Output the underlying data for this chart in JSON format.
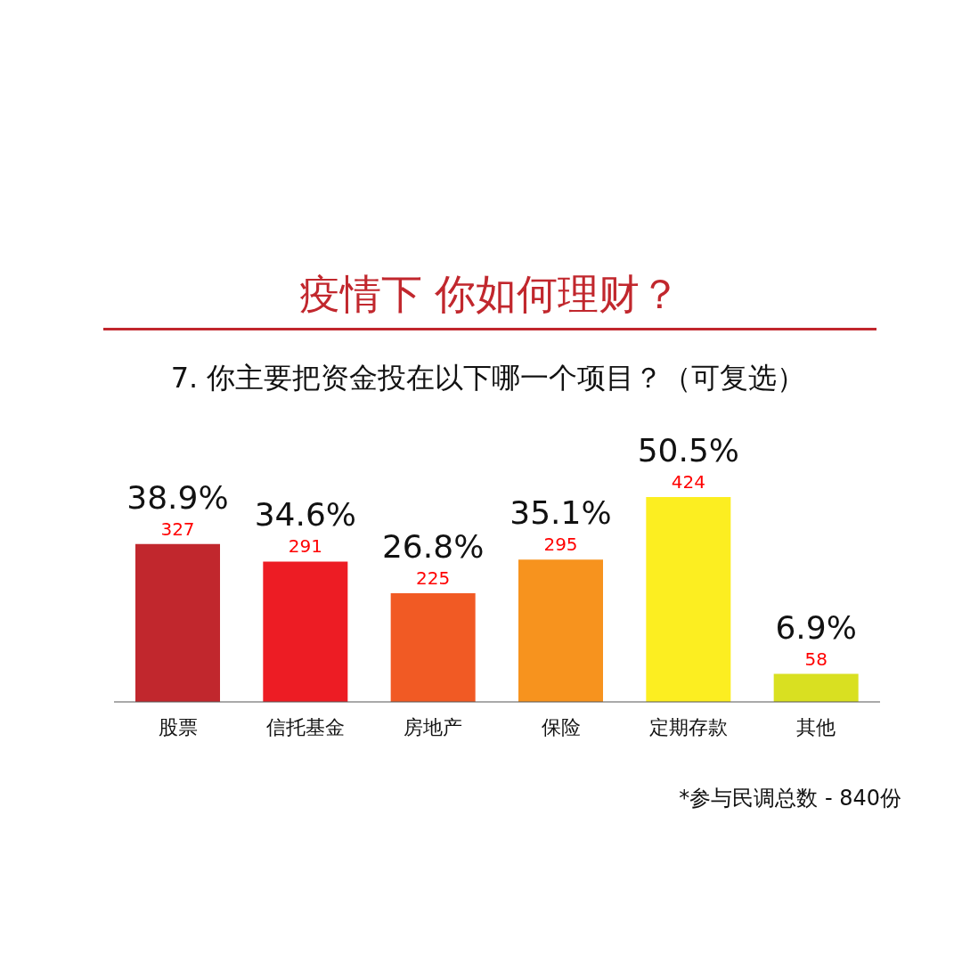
{
  "chart_data": {
    "type": "bar",
    "title": "疫情下  你如何理财？",
    "subtitle": "7. 你主要把资金投在以下哪一个项目？（可复选）",
    "categories": [
      "股票",
      "信托基金",
      "房地产",
      "保险",
      "定期存款",
      "其他"
    ],
    "values": [
      38.9,
      34.6,
      26.8,
      35.1,
      50.5,
      6.9
    ],
    "colors": [
      "#c1272d",
      "#ed1c24",
      "#f15a24",
      "#f7931e",
      "#fcee21",
      "#d9e021"
    ],
    "value_labels": [
      "38.9%",
      "34.6%",
      "26.8%",
      "35.1%",
      "50.5%",
      "6.9%"
    ],
    "annotations": [
      "327",
      "291",
      "225",
      "295",
      "424",
      "58",
      "*参与民调总数 - 840份"
    ]
  }
}
